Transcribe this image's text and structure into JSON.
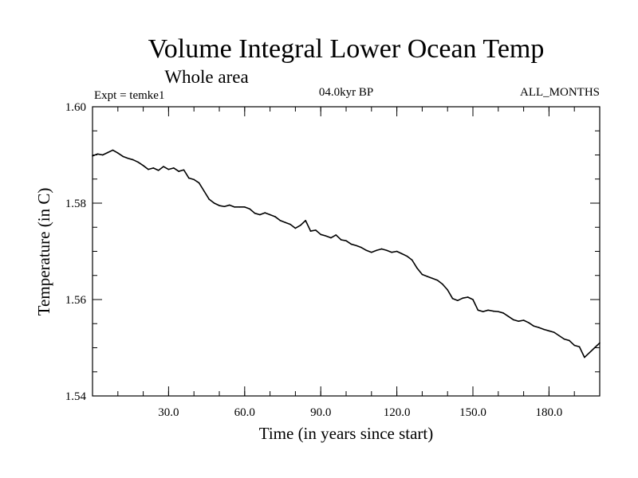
{
  "chart_data": {
    "type": "line",
    "title": "Volume Integral Lower Ocean Temp",
    "subtitle": "Whole area",
    "experiment": "Expt = temke1",
    "period": "04.0kyr BP",
    "months": "ALL_MONTHS",
    "xlabel": "Time (in years since start)",
    "ylabel": "Temperature (in C)",
    "xlim": [
      0,
      200
    ],
    "ylim": [
      1.54,
      1.6
    ],
    "x_ticks": [
      {
        "value": 30,
        "label": "30.0"
      },
      {
        "value": 60,
        "label": "60.0"
      },
      {
        "value": 90,
        "label": "90.0"
      },
      {
        "value": 120,
        "label": "120.0"
      },
      {
        "value": 150,
        "label": "150.0"
      },
      {
        "value": 180,
        "label": "180.0"
      }
    ],
    "y_ticks": [
      {
        "value": 1.54,
        "label": "1.54"
      },
      {
        "value": 1.56,
        "label": "1.56"
      },
      {
        "value": 1.58,
        "label": "1.58"
      },
      {
        "value": 1.6,
        "label": "1.60"
      }
    ],
    "x_minor_step": 10,
    "y_minor_step": 0.005,
    "series": [
      {
        "name": "temke1",
        "x": [
          0,
          2,
          4,
          6,
          8,
          10,
          12,
          14,
          16,
          18,
          20,
          22,
          24,
          26,
          28,
          30,
          32,
          34,
          36,
          38,
          40,
          42,
          44,
          46,
          48,
          50,
          52,
          54,
          56,
          58,
          60,
          62,
          64,
          66,
          68,
          70,
          72,
          74,
          76,
          78,
          80,
          82,
          84,
          86,
          88,
          90,
          92,
          94,
          96,
          98,
          100,
          102,
          104,
          106,
          108,
          110,
          112,
          114,
          116,
          118,
          120,
          122,
          124,
          126,
          128,
          130,
          132,
          134,
          136,
          138,
          140,
          142,
          144,
          146,
          148,
          150,
          152,
          154,
          156,
          158,
          160,
          162,
          164,
          166,
          168,
          170,
          172,
          174,
          176,
          178,
          180,
          182,
          184,
          186,
          188,
          190,
          192,
          194,
          196,
          198,
          200
        ],
        "y": [
          1.5898,
          1.5902,
          1.59,
          1.5905,
          1.591,
          1.5904,
          1.5897,
          1.5893,
          1.589,
          1.5885,
          1.5878,
          1.587,
          1.5873,
          1.5868,
          1.5876,
          1.587,
          1.5873,
          1.5866,
          1.5869,
          1.5852,
          1.5849,
          1.5842,
          1.5825,
          1.5808,
          1.58,
          1.5795,
          1.5793,
          1.5796,
          1.5792,
          1.5792,
          1.5792,
          1.5788,
          1.5779,
          1.5776,
          1.578,
          1.5776,
          1.5772,
          1.5764,
          1.576,
          1.5756,
          1.5748,
          1.5754,
          1.5764,
          1.5742,
          1.5744,
          1.5735,
          1.5732,
          1.5728,
          1.5734,
          1.5724,
          1.5722,
          1.5715,
          1.5712,
          1.5708,
          1.5702,
          1.5698,
          1.5702,
          1.5705,
          1.5702,
          1.5698,
          1.57,
          1.5695,
          1.569,
          1.5682,
          1.5665,
          1.5652,
          1.5648,
          1.5644,
          1.564,
          1.5632,
          1.562,
          1.5602,
          1.5598,
          1.5603,
          1.5605,
          1.56,
          1.5578,
          1.5575,
          1.5578,
          1.5576,
          1.5575,
          1.5572,
          1.5565,
          1.5558,
          1.5555,
          1.5557,
          1.5552,
          1.5545,
          1.5542,
          1.5538,
          1.5535,
          1.5532,
          1.5525,
          1.5518,
          1.5515,
          1.5505,
          1.5502,
          1.548,
          1.549,
          1.55,
          1.551
        ]
      }
    ]
  }
}
